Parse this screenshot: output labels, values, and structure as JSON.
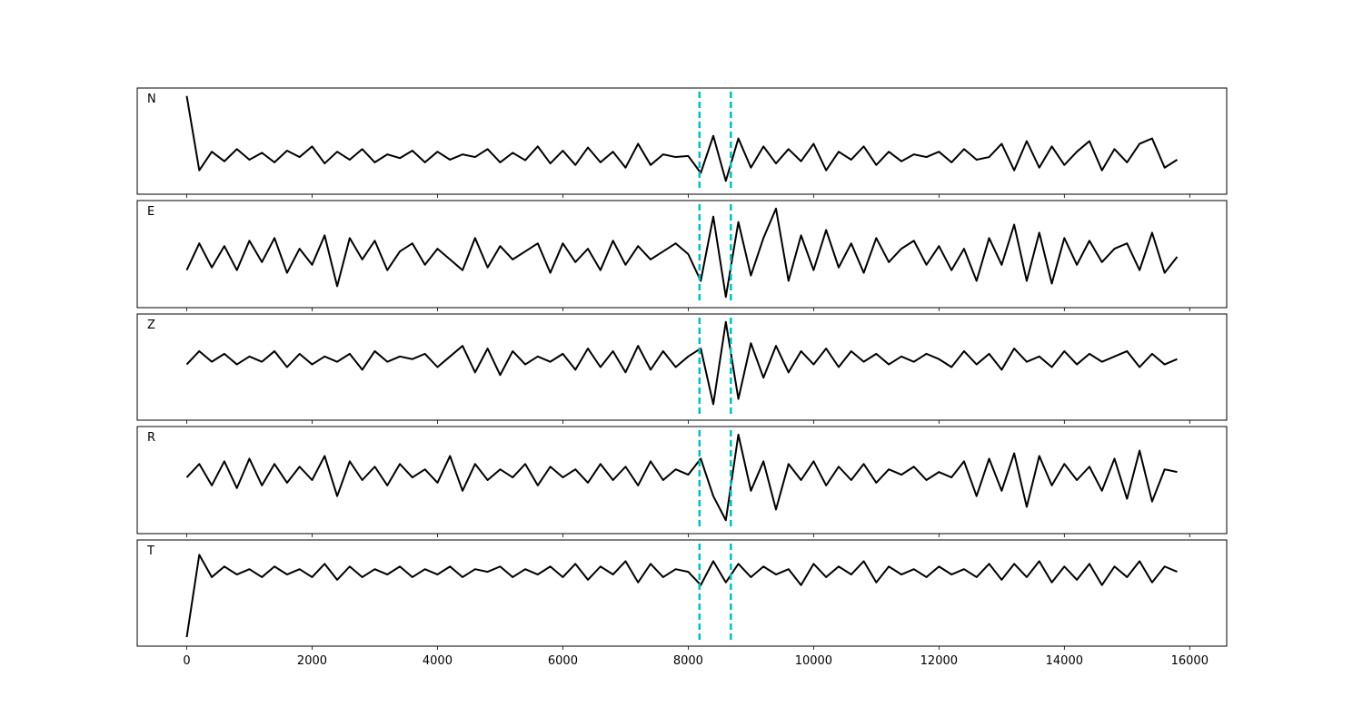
{
  "chart_data": {
    "type": "line",
    "x": [
      0,
      200,
      400,
      600,
      800,
      1000,
      1200,
      1400,
      1600,
      1800,
      2000,
      2200,
      2400,
      2600,
      2800,
      3000,
      3200,
      3400,
      3600,
      3800,
      4000,
      4200,
      4400,
      4600,
      4800,
      5000,
      5200,
      5400,
      5600,
      5800,
      6000,
      6200,
      6400,
      6600,
      6800,
      7000,
      7200,
      7400,
      7600,
      7800,
      8000,
      8200,
      8400,
      8600,
      8800,
      9000,
      9200,
      9400,
      9600,
      9800,
      10000,
      10200,
      10400,
      10600,
      10800,
      11000,
      11200,
      11400,
      11600,
      11800,
      12000,
      12200,
      12400,
      12600,
      12800,
      13000,
      13200,
      13400,
      13600,
      13800,
      14000,
      14200,
      14400,
      14600,
      14800,
      15000,
      15200,
      15400,
      15600,
      15800
    ],
    "series": [
      {
        "name": "N",
        "color": "#000000",
        "values": [
          0.85,
          -0.55,
          -0.2,
          -0.38,
          -0.15,
          -0.35,
          -0.22,
          -0.4,
          -0.18,
          -0.3,
          -0.1,
          -0.42,
          -0.2,
          -0.35,
          -0.15,
          -0.4,
          -0.25,
          -0.32,
          -0.18,
          -0.4,
          -0.2,
          -0.35,
          -0.25,
          -0.3,
          -0.15,
          -0.4,
          -0.22,
          -0.36,
          -0.1,
          -0.42,
          -0.18,
          -0.45,
          -0.12,
          -0.4,
          -0.2,
          -0.5,
          -0.05,
          -0.45,
          -0.25,
          -0.3,
          -0.28,
          -0.6,
          0.1,
          -0.75,
          0.05,
          -0.5,
          -0.1,
          -0.42,
          -0.15,
          -0.38,
          -0.05,
          -0.55,
          -0.2,
          -0.35,
          -0.1,
          -0.45,
          -0.2,
          -0.38,
          -0.25,
          -0.3,
          -0.2,
          -0.4,
          -0.15,
          -0.35,
          -0.3,
          -0.05,
          -0.55,
          0.0,
          -0.5,
          -0.1,
          -0.45,
          -0.2,
          0.0,
          -0.55,
          -0.15,
          -0.4,
          -0.05,
          0.05,
          -0.5,
          -0.35
        ]
      },
      {
        "name": "E",
        "color": "#000000",
        "values": [
          -0.3,
          0.2,
          -0.25,
          0.15,
          -0.3,
          0.25,
          -0.15,
          0.3,
          -0.35,
          0.1,
          -0.2,
          0.35,
          -0.6,
          0.3,
          -0.1,
          0.25,
          -0.3,
          0.05,
          0.2,
          -0.2,
          0.1,
          -0.1,
          -0.3,
          0.3,
          -0.25,
          0.15,
          -0.1,
          0.05,
          0.2,
          -0.35,
          0.2,
          -0.15,
          0.1,
          -0.3,
          0.25,
          -0.2,
          0.15,
          -0.1,
          0.05,
          0.2,
          0.0,
          -0.5,
          0.7,
          -0.8,
          0.6,
          -0.4,
          0.3,
          0.85,
          -0.5,
          0.35,
          -0.3,
          0.45,
          -0.25,
          0.2,
          -0.35,
          0.3,
          -0.15,
          0.1,
          0.25,
          -0.2,
          0.15,
          -0.3,
          0.1,
          -0.5,
          0.3,
          -0.2,
          0.55,
          -0.5,
          0.4,
          -0.55,
          0.3,
          -0.2,
          0.25,
          -0.15,
          0.1,
          0.2,
          -0.3,
          0.4,
          -0.35,
          -0.05
        ]
      },
      {
        "name": "Z",
        "color": "#000000",
        "values": [
          0.05,
          0.3,
          0.1,
          0.25,
          0.05,
          0.2,
          0.1,
          0.3,
          0.0,
          0.25,
          0.05,
          0.2,
          0.1,
          0.25,
          -0.05,
          0.3,
          0.1,
          0.2,
          0.15,
          0.25,
          0.0,
          0.2,
          0.4,
          -0.1,
          0.35,
          -0.15,
          0.3,
          0.05,
          0.2,
          0.1,
          0.25,
          -0.05,
          0.35,
          0.0,
          0.3,
          -0.1,
          0.4,
          -0.05,
          0.3,
          0.0,
          0.2,
          0.35,
          -0.7,
          0.85,
          -0.6,
          0.45,
          -0.2,
          0.4,
          -0.1,
          0.3,
          0.05,
          0.35,
          0.0,
          0.3,
          0.1,
          0.25,
          0.05,
          0.2,
          0.1,
          0.25,
          0.15,
          0.0,
          0.3,
          0.05,
          0.25,
          -0.05,
          0.35,
          0.1,
          0.2,
          0.0,
          0.3,
          0.05,
          0.25,
          0.1,
          0.2,
          0.3,
          0.0,
          0.25,
          0.05,
          0.15
        ]
      },
      {
        "name": "R",
        "color": "#000000",
        "values": [
          0.05,
          0.3,
          -0.1,
          0.35,
          -0.15,
          0.4,
          -0.1,
          0.3,
          -0.05,
          0.25,
          0.0,
          0.45,
          -0.3,
          0.35,
          0.0,
          0.25,
          -0.1,
          0.3,
          0.05,
          0.2,
          -0.05,
          0.45,
          -0.2,
          0.3,
          0.0,
          0.2,
          0.05,
          0.3,
          -0.1,
          0.25,
          0.05,
          0.2,
          -0.05,
          0.3,
          0.0,
          0.25,
          -0.1,
          0.35,
          0.0,
          0.2,
          0.1,
          0.4,
          -0.3,
          -0.75,
          0.85,
          -0.2,
          0.35,
          -0.55,
          0.3,
          0.0,
          0.35,
          -0.1,
          0.25,
          0.0,
          0.3,
          -0.05,
          0.2,
          0.1,
          0.25,
          0.0,
          0.15,
          0.05,
          0.35,
          -0.3,
          0.4,
          -0.2,
          0.5,
          -0.5,
          0.45,
          -0.1,
          0.3,
          0.0,
          0.25,
          -0.2,
          0.4,
          -0.35,
          0.55,
          -0.4,
          0.2,
          0.15
        ]
      },
      {
        "name": "T",
        "color": "#000000",
        "values": [
          -0.83,
          0.72,
          0.3,
          0.5,
          0.35,
          0.45,
          0.3,
          0.5,
          0.35,
          0.45,
          0.3,
          0.55,
          0.25,
          0.5,
          0.3,
          0.45,
          0.35,
          0.5,
          0.3,
          0.45,
          0.35,
          0.5,
          0.3,
          0.45,
          0.4,
          0.5,
          0.3,
          0.45,
          0.35,
          0.5,
          0.3,
          0.55,
          0.25,
          0.5,
          0.35,
          0.6,
          0.2,
          0.55,
          0.3,
          0.45,
          0.4,
          0.15,
          0.6,
          0.2,
          0.55,
          0.3,
          0.5,
          0.35,
          0.45,
          0.15,
          0.55,
          0.3,
          0.5,
          0.35,
          0.6,
          0.2,
          0.5,
          0.35,
          0.45,
          0.3,
          0.5,
          0.35,
          0.45,
          0.3,
          0.55,
          0.25,
          0.55,
          0.3,
          0.6,
          0.2,
          0.5,
          0.25,
          0.55,
          0.15,
          0.5,
          0.3,
          0.6,
          0.2,
          0.5,
          0.4
        ]
      }
    ],
    "xlim": [
      -790,
      16590
    ],
    "xticks": [
      0,
      2000,
      4000,
      6000,
      8000,
      10000,
      12000,
      14000,
      16000
    ],
    "ylim": [
      -1,
      1
    ],
    "event_markers": [
      8180,
      8680
    ],
    "event_color": "#00bfbf"
  }
}
